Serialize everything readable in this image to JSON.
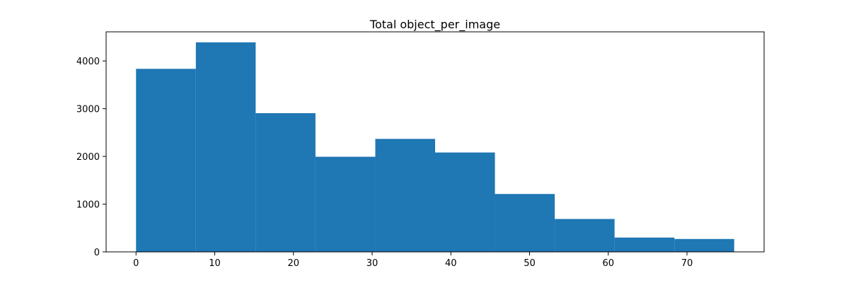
{
  "chart_data": {
    "type": "histogram",
    "title": "Total object_per_image",
    "bins": [
      0,
      7.6,
      15.2,
      22.8,
      30.4,
      38,
      45.6,
      53.2,
      60.8,
      68.4,
      76
    ],
    "values": [
      3835,
      4390,
      2906,
      1993,
      2367,
      2082,
      1213,
      689,
      300,
      270
    ],
    "color": "#1f77b4",
    "xlim": [
      -3.8,
      79.8
    ],
    "xticks": [
      0,
      10,
      20,
      30,
      40,
      50,
      60,
      70
    ],
    "ylim": [
      0,
      4610
    ],
    "yticks": [
      0,
      1000,
      2000,
      3000,
      4000
    ]
  }
}
